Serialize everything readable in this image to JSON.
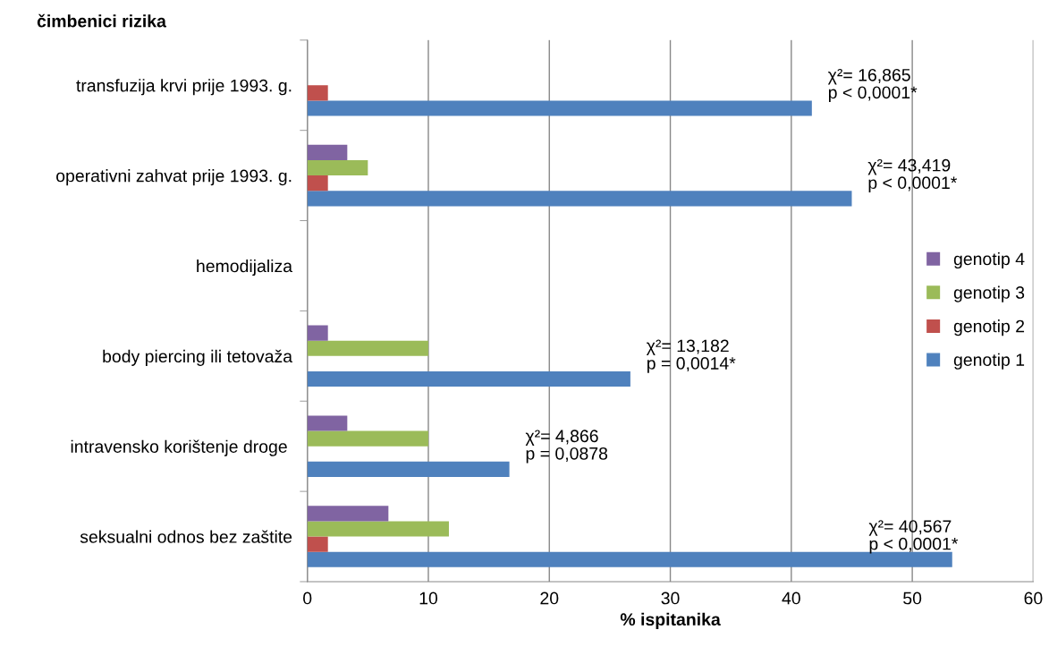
{
  "chart_data": {
    "type": "bar",
    "orientation": "horizontal",
    "ylabel": "čimbenici rizika",
    "xlabel": "% ispitanika",
    "categories": [
      "transfuzija krvi prije 1993. g.",
      "operativni zahvat prije 1993. g.",
      "hemodijaliza",
      "body piercing ili tetovaža",
      "intravensko korištenje droge ",
      "seksualni odnos bez zaštite"
    ],
    "series": [
      {
        "name": "genotip 1",
        "color": "#4f81bd",
        "values": [
          41.7,
          45.0,
          null,
          26.7,
          16.7,
          53.3
        ]
      },
      {
        "name": "genotip 2",
        "color": "#c0504d",
        "values": [
          1.7,
          1.7,
          null,
          null,
          null,
          1.7
        ]
      },
      {
        "name": "genotip 3",
        "color": "#9bbb59",
        "values": [
          null,
          5.0,
          null,
          10.0,
          10.0,
          11.7
        ]
      },
      {
        "name": "genotip 4",
        "color": "#8064a2",
        "values": [
          null,
          3.3,
          null,
          1.7,
          3.3,
          6.7
        ]
      }
    ],
    "xlim": [
      0,
      60
    ],
    "xticks": [
      0,
      10,
      20,
      30,
      40,
      50,
      60
    ],
    "grid": "x",
    "legend": "right",
    "annotations": [
      "χ²= 16,865\np < 0,0001*",
      "χ²= 43,419\np < 0,0001*",
      "χ²= 13,182\np = 0,0014*",
      "χ²= 4,866\np = 0,0878",
      "χ²= 40,567\np < 0,0001*"
    ]
  }
}
